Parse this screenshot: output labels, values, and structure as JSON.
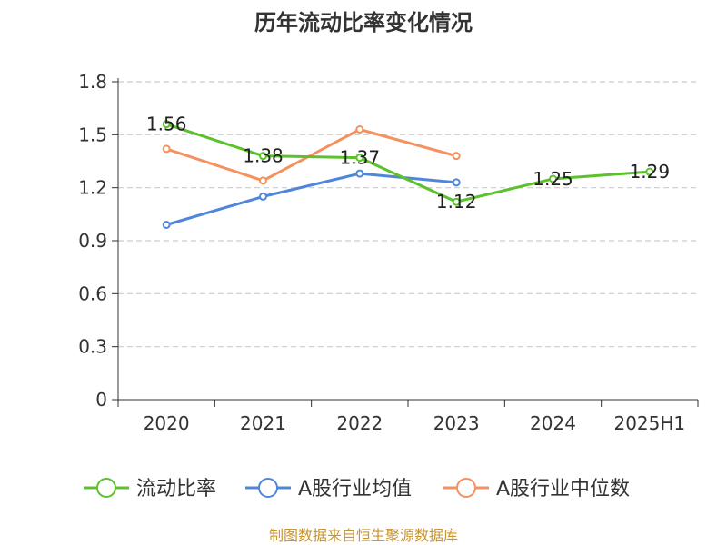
{
  "chart_data": {
    "type": "line",
    "title": "历年流动比率变化情况",
    "categories": [
      "2020",
      "2021",
      "2022",
      "2023",
      "2024",
      "2025H1"
    ],
    "y_ticks": [
      "0",
      "0.3",
      "0.6",
      "0.9",
      "1.2",
      "1.5",
      "1.8"
    ],
    "ylim": [
      0,
      1.8
    ],
    "grid": true,
    "legend_position": "bottom",
    "series": [
      {
        "name": "流动比率",
        "color": "#5cc12b",
        "values": [
          1.56,
          1.38,
          1.37,
          1.12,
          1.25,
          1.29
        ],
        "data_labels": [
          "1.56",
          "1.38",
          "1.37",
          "1.12",
          "1.25",
          "1.29"
        ]
      },
      {
        "name": "A股行业均值",
        "color": "#4f86da",
        "values": [
          0.99,
          1.15,
          1.28,
          1.23,
          null,
          null
        ]
      },
      {
        "name": "A股行业中位数",
        "color": "#f4915e",
        "values": [
          1.42,
          1.24,
          1.53,
          1.38,
          null,
          null
        ]
      }
    ]
  },
  "source_text": "制图数据来自恒生聚源数据库"
}
